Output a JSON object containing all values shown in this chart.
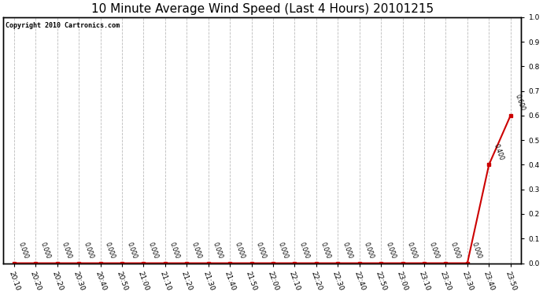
{
  "title": "10 Minute Average Wind Speed (Last 4 Hours) 20101215",
  "copyright_text": "Copyright 2010 Cartronics.com",
  "x_labels": [
    "20:10",
    "20:20",
    "20:20",
    "20:30",
    "20:40",
    "20:50",
    "21:00",
    "21:10",
    "21:20",
    "21:30",
    "21:40",
    "21:50",
    "22:00",
    "22:10",
    "22:20",
    "22:30",
    "22:40",
    "22:50",
    "23:00",
    "23:10",
    "23:20",
    "23:30",
    "23:40",
    "23:50"
  ],
  "y_values": [
    0.0,
    0.0,
    0.0,
    0.0,
    0.0,
    0.0,
    0.0,
    0.0,
    0.0,
    0.0,
    0.0,
    0.0,
    0.0,
    0.0,
    0.0,
    0.0,
    0.0,
    0.0,
    0.0,
    0.0,
    0.0,
    0.0,
    0.4,
    0.6
  ],
  "data_labels": [
    "0.000",
    "0.000",
    "0.000",
    "0.000",
    "0.000",
    "0.000",
    "0.000",
    "0.000",
    "0.000",
    "0.000",
    "0.000",
    "0.000",
    "0.000",
    "0.000",
    "0.000",
    "0.000",
    "0.000",
    "0.000",
    "0.000",
    "0.000",
    "0.000",
    "0.000",
    "0.400",
    "0.600"
  ],
  "line_color": "#cc0000",
  "marker_color": "#cc0000",
  "background_color": "#ffffff",
  "grid_color": "#bbbbbb",
  "ylim": [
    0.0,
    1.0
  ],
  "title_fontsize": 11,
  "copyright_fontsize": 6,
  "label_fontsize": 5.5,
  "tick_fontsize": 6.5
}
